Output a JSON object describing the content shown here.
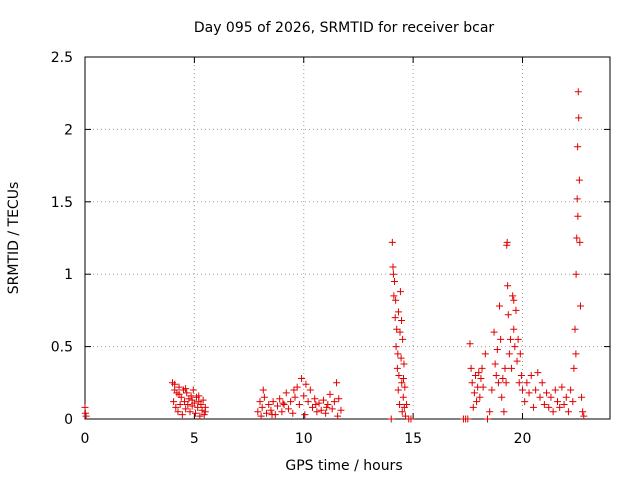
{
  "chart_data": {
    "type": "scatter",
    "title": "Day 095 of 2026, SRMTID for receiver bcar",
    "xlabel": "GPS time / hours",
    "ylabel": "SRMTID / TECUs",
    "xlim": [
      0,
      24
    ],
    "ylim": [
      0,
      2.5
    ],
    "xticks": [
      0,
      5,
      10,
      15,
      20
    ],
    "xtick_labels": [
      "0",
      "5",
      "10",
      "15",
      "20"
    ],
    "yticks": [
      0,
      0.5,
      1,
      1.5,
      2,
      2.5
    ],
    "ytick_labels": [
      "0",
      "0.5",
      "1",
      "1.5",
      "2",
      "2.5"
    ],
    "grid": true,
    "marker": "+",
    "color": "#e00000",
    "series": [
      {
        "name": "SRMTID",
        "points": [
          [
            0.0,
            0.08
          ],
          [
            0.02,
            0.04
          ],
          [
            0.05,
            0.02
          ],
          [
            4.0,
            0.25
          ],
          [
            4.05,
            0.12
          ],
          [
            4.1,
            0.2
          ],
          [
            4.15,
            0.08
          ],
          [
            4.2,
            0.18
          ],
          [
            4.25,
            0.05
          ],
          [
            4.3,
            0.22
          ],
          [
            4.35,
            0.1
          ],
          [
            4.4,
            0.15
          ],
          [
            4.45,
            0.03
          ],
          [
            4.5,
            0.2
          ],
          [
            4.55,
            0.12
          ],
          [
            4.6,
            0.07
          ],
          [
            4.65,
            0.18
          ],
          [
            4.7,
            0.1
          ],
          [
            4.75,
            0.14
          ],
          [
            4.8,
            0.05
          ],
          [
            4.85,
            0.16
          ],
          [
            4.9,
            0.09
          ],
          [
            4.95,
            0.2
          ],
          [
            5.0,
            0.11
          ],
          [
            5.05,
            0.04
          ],
          [
            5.1,
            0.15
          ],
          [
            5.15,
            0.08
          ],
          [
            5.2,
            0.12
          ],
          [
            5.25,
            0.02
          ],
          [
            5.3,
            0.1
          ],
          [
            5.35,
            0.06
          ],
          [
            5.4,
            0.13
          ],
          [
            5.45,
            0.03
          ],
          [
            5.5,
            0.08
          ],
          [
            4.1,
            0.24
          ],
          [
            4.3,
            0.17
          ],
          [
            4.6,
            0.21
          ],
          [
            4.9,
            0.13
          ],
          [
            5.2,
            0.16
          ],
          [
            5.5,
            0.05
          ],
          [
            7.9,
            0.05
          ],
          [
            8.0,
            0.12
          ],
          [
            8.05,
            0.02
          ],
          [
            8.1,
            0.08
          ],
          [
            8.2,
            0.15
          ],
          [
            8.3,
            0.04
          ],
          [
            8.4,
            0.1
          ],
          [
            8.5,
            0.06
          ],
          [
            8.6,
            0.12
          ],
          [
            8.7,
            0.03
          ],
          [
            8.8,
            0.09
          ],
          [
            8.9,
            0.14
          ],
          [
            9.0,
            0.05
          ],
          [
            9.1,
            0.1
          ],
          [
            9.2,
            0.18
          ],
          [
            9.3,
            0.07
          ],
          [
            9.4,
            0.12
          ],
          [
            9.5,
            0.04
          ],
          [
            9.6,
            0.15
          ],
          [
            9.7,
            0.22
          ],
          [
            9.8,
            0.1
          ],
          [
            9.9,
            0.28
          ],
          [
            10.0,
            0.16
          ],
          [
            10.1,
            0.24
          ],
          [
            10.2,
            0.12
          ],
          [
            10.3,
            0.2
          ],
          [
            10.4,
            0.08
          ],
          [
            10.5,
            0.14
          ],
          [
            10.6,
            0.05
          ],
          [
            10.7,
            0.11
          ],
          [
            10.8,
            0.06
          ],
          [
            10.9,
            0.13
          ],
          [
            11.0,
            0.04
          ],
          [
            11.1,
            0.1
          ],
          [
            11.2,
            0.17
          ],
          [
            11.3,
            0.07
          ],
          [
            11.4,
            0.12
          ],
          [
            11.5,
            0.25
          ],
          [
            11.6,
            0.14
          ],
          [
            11.7,
            0.06
          ],
          [
            8.15,
            0.2
          ],
          [
            8.55,
            0.03
          ],
          [
            9.05,
            0.11
          ],
          [
            9.55,
            0.2
          ],
          [
            10.05,
            0.03
          ],
          [
            10.55,
            0.1
          ],
          [
            11.05,
            0.08
          ],
          [
            11.55,
            0.02
          ],
          [
            14.0,
            0.0
          ],
          [
            14.05,
            1.22
          ],
          [
            14.1,
            1.0
          ],
          [
            14.12,
            0.85
          ],
          [
            14.15,
            0.95
          ],
          [
            14.18,
            0.7
          ],
          [
            14.2,
            0.82
          ],
          [
            14.22,
            0.5
          ],
          [
            14.25,
            0.62
          ],
          [
            14.28,
            0.35
          ],
          [
            14.3,
            0.45
          ],
          [
            14.32,
            0.2
          ],
          [
            14.35,
            0.3
          ],
          [
            14.38,
            0.1
          ],
          [
            14.4,
            0.6
          ],
          [
            14.42,
            0.88
          ],
          [
            14.45,
            0.42
          ],
          [
            14.48,
            0.25
          ],
          [
            14.5,
            0.05
          ],
          [
            14.52,
            0.55
          ],
          [
            14.55,
            0.15
          ],
          [
            14.58,
            0.38
          ],
          [
            14.6,
            0.08
          ],
          [
            14.62,
            0.22
          ],
          [
            14.65,
            0.02
          ],
          [
            14.7,
            0.1
          ],
          [
            14.8,
            0.0
          ],
          [
            14.9,
            0.0
          ],
          [
            14.08,
            1.05
          ],
          [
            14.33,
            0.74
          ],
          [
            14.47,
            0.68
          ],
          [
            14.56,
            0.28
          ],
          [
            17.3,
            0.0
          ],
          [
            17.4,
            0.0
          ],
          [
            17.5,
            0.0
          ],
          [
            17.6,
            0.52
          ],
          [
            17.65,
            0.35
          ],
          [
            17.7,
            0.25
          ],
          [
            17.75,
            0.08
          ],
          [
            17.8,
            0.18
          ],
          [
            17.85,
            0.3
          ],
          [
            17.9,
            0.12
          ],
          [
            17.95,
            0.22
          ],
          [
            18.0,
            0.32
          ],
          [
            18.05,
            0.15
          ],
          [
            18.1,
            0.28
          ],
          [
            18.15,
            0.35
          ],
          [
            18.2,
            0.22
          ],
          [
            18.3,
            0.45
          ],
          [
            18.4,
            0.0
          ],
          [
            18.5,
            0.05
          ],
          [
            18.6,
            0.2
          ],
          [
            18.7,
            0.6
          ],
          [
            18.75,
            0.38
          ],
          [
            18.8,
            0.3
          ],
          [
            18.85,
            0.48
          ],
          [
            18.9,
            0.25
          ],
          [
            18.95,
            0.78
          ],
          [
            19.0,
            0.55
          ],
          [
            19.05,
            0.15
          ],
          [
            19.1,
            0.28
          ],
          [
            19.15,
            0.05
          ],
          [
            19.2,
            0.35
          ],
          [
            19.25,
            0.25
          ],
          [
            19.3,
            1.22
          ],
          [
            19.32,
            0.92
          ],
          [
            19.35,
            0.72
          ],
          [
            19.4,
            0.45
          ],
          [
            19.45,
            0.55
          ],
          [
            19.5,
            0.35
          ],
          [
            19.55,
            0.85
          ],
          [
            19.6,
            0.62
          ],
          [
            19.65,
            0.5
          ],
          [
            19.7,
            0.75
          ],
          [
            19.75,
            0.4
          ],
          [
            19.8,
            0.55
          ],
          [
            19.85,
            0.25
          ],
          [
            19.9,
            0.45
          ],
          [
            19.95,
            0.3
          ],
          [
            20.0,
            0.2
          ],
          [
            20.1,
            0.12
          ],
          [
            20.2,
            0.25
          ],
          [
            20.3,
            0.18
          ],
          [
            20.4,
            0.3
          ],
          [
            20.5,
            0.08
          ],
          [
            20.6,
            0.2
          ],
          [
            20.7,
            0.32
          ],
          [
            20.8,
            0.15
          ],
          [
            20.9,
            0.25
          ],
          [
            21.0,
            0.1
          ],
          [
            21.1,
            0.18
          ],
          [
            21.2,
            0.08
          ],
          [
            21.3,
            0.15
          ],
          [
            21.4,
            0.05
          ],
          [
            21.5,
            0.2
          ],
          [
            21.6,
            0.12
          ],
          [
            21.7,
            0.08
          ],
          [
            21.8,
            0.22
          ],
          [
            21.9,
            0.1
          ],
          [
            22.0,
            0.15
          ],
          [
            22.1,
            0.05
          ],
          [
            22.2,
            0.2
          ],
          [
            22.3,
            0.12
          ],
          [
            22.35,
            0.35
          ],
          [
            22.4,
            0.62
          ],
          [
            22.45,
            1.0
          ],
          [
            22.48,
            1.25
          ],
          [
            22.5,
            1.52
          ],
          [
            22.52,
            1.88
          ],
          [
            22.55,
            2.26
          ],
          [
            22.57,
            2.08
          ],
          [
            22.6,
            1.65
          ],
          [
            22.62,
            1.22
          ],
          [
            22.65,
            0.78
          ],
          [
            22.7,
            0.15
          ],
          [
            22.75,
            0.05
          ],
          [
            22.8,
            0.02
          ],
          [
            19.28,
            1.2
          ],
          [
            19.6,
            0.82
          ],
          [
            22.53,
            1.4
          ],
          [
            22.44,
            0.45
          ]
        ]
      }
    ]
  }
}
